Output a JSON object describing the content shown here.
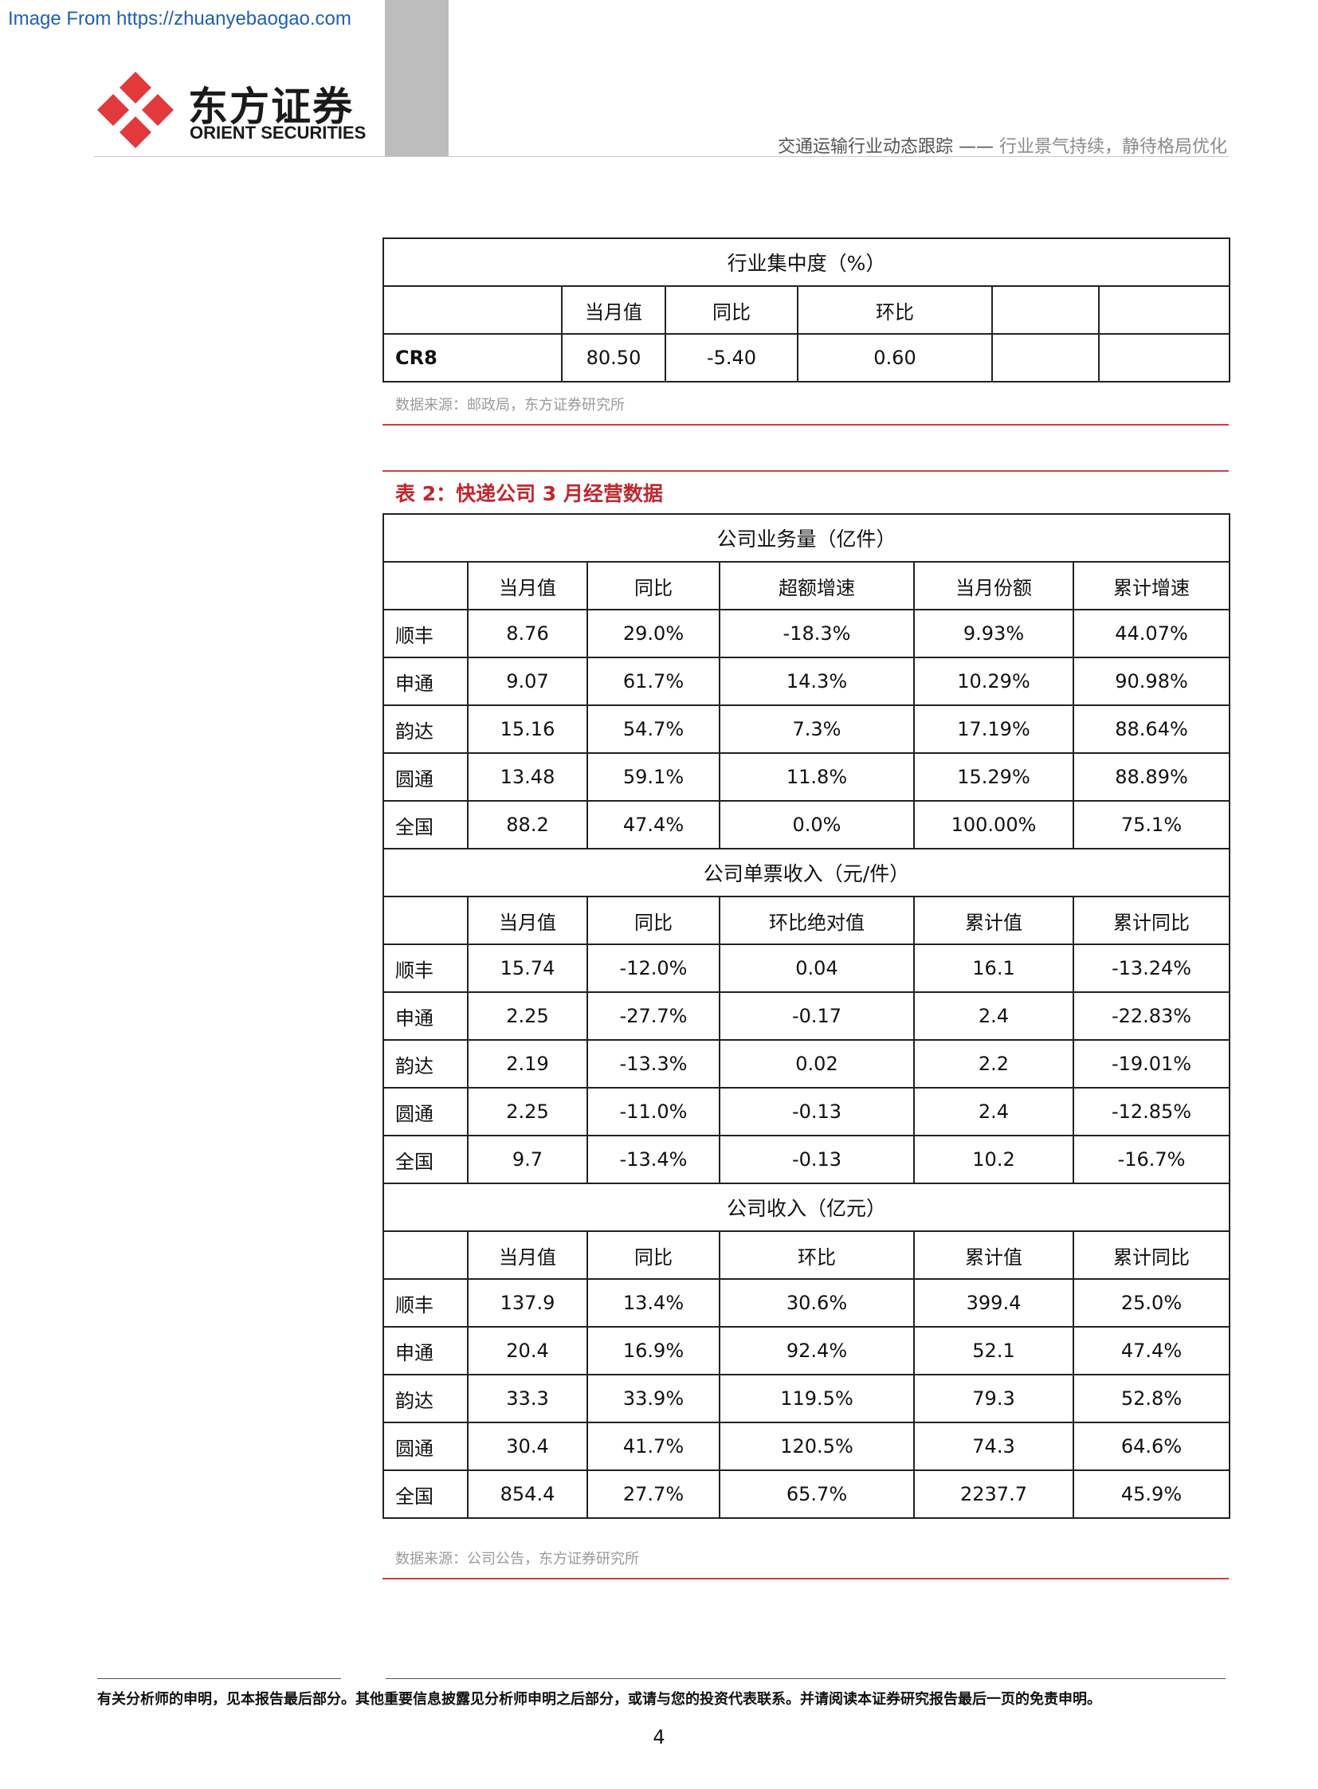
{
  "watermark": "Image From https://zhuanyebaogao.com",
  "logo": {
    "cn": "东方证券",
    "en": "ORIENT SECURITIES"
  },
  "header": {
    "main": "交通运输行业动态跟踪",
    "sep": " —— ",
    "sub": "行业景气持续，静待格局优化"
  },
  "table1": {
    "title": "行业集中度（%）",
    "headers": [
      "",
      "当月值",
      "同比",
      "环比",
      "",
      ""
    ],
    "row": [
      "CR8",
      "80.50",
      "-5.40",
      "0.60",
      "",
      ""
    ],
    "source": "数据来源：邮政局，东方证券研究所"
  },
  "table2": {
    "caption": "表 2：快递公司 3 月经营数据",
    "sections": [
      {
        "title": "公司业务量（亿件）",
        "headers": [
          "",
          "当月值",
          "同比",
          "超额增速",
          "当月份额",
          "累计增速"
        ],
        "rows": [
          [
            "顺丰",
            "8.76",
            "29.0%",
            "-18.3%",
            "9.93%",
            "44.07%"
          ],
          [
            "申通",
            "9.07",
            "61.7%",
            "14.3%",
            "10.29%",
            "90.98%"
          ],
          [
            "韵达",
            "15.16",
            "54.7%",
            "7.3%",
            "17.19%",
            "88.64%"
          ],
          [
            "圆通",
            "13.48",
            "59.1%",
            "11.8%",
            "15.29%",
            "88.89%"
          ],
          [
            "全国",
            "88.2",
            "47.4%",
            "0.0%",
            "100.00%",
            "75.1%"
          ]
        ]
      },
      {
        "title": "公司单票收入（元/件）",
        "headers": [
          "",
          "当月值",
          "同比",
          "环比绝对值",
          "累计值",
          "累计同比"
        ],
        "rows": [
          [
            "顺丰",
            "15.74",
            "-12.0%",
            "0.04",
            "16.1",
            "-13.24%"
          ],
          [
            "申通",
            "2.25",
            "-27.7%",
            "-0.17",
            "2.4",
            "-22.83%"
          ],
          [
            "韵达",
            "2.19",
            "-13.3%",
            "0.02",
            "2.2",
            "-19.01%"
          ],
          [
            "圆通",
            "2.25",
            "-11.0%",
            "-0.13",
            "2.4",
            "-12.85%"
          ],
          [
            "全国",
            "9.7",
            "-13.4%",
            "-0.13",
            "10.2",
            "-16.7%"
          ]
        ]
      },
      {
        "title": "公司收入（亿元）",
        "headers": [
          "",
          "当月值",
          "同比",
          "环比",
          "累计值",
          "累计同比"
        ],
        "rows": [
          [
            "顺丰",
            "137.9",
            "13.4%",
            "30.6%",
            "399.4",
            "25.0%"
          ],
          [
            "申通",
            "20.4",
            "16.9%",
            "92.4%",
            "52.1",
            "47.4%"
          ],
          [
            "韵达",
            "33.3",
            "33.9%",
            "119.5%",
            "79.3",
            "52.8%"
          ],
          [
            "圆通",
            "30.4",
            "41.7%",
            "120.5%",
            "74.3",
            "64.6%"
          ],
          [
            "全国",
            "854.4",
            "27.7%",
            "65.7%",
            "2237.7",
            "45.9%"
          ]
        ]
      }
    ],
    "source": "数据来源：公司公告，东方证券研究所"
  },
  "footer": {
    "note": "有关分析师的申明，见本报告最后部分。其他重要信息披露见分析师申明之后部分，或请与您的投资代表联系。并请阅读本证券研究报告最后一页的免责申明。",
    "page": "4"
  },
  "colors": {
    "accent_red": "#c0272d",
    "logo_red": "#e1393c",
    "divider_red": "#d63c3c"
  }
}
